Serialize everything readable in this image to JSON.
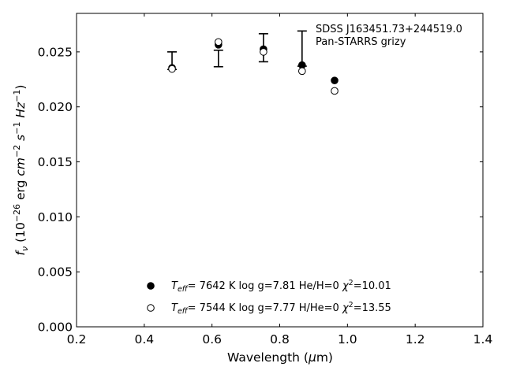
{
  "chart_data": {
    "type": "scatter",
    "xlabel_main": "Wavelength (",
    "xlabel_mu": "μ",
    "xlabel_unit": "m)",
    "ylabel_f": "f",
    "ylabel_sub": "ν",
    "ylabel_open": " (10",
    "ylabel_exp1": "−26",
    "ylabel_erg": " erg ",
    "ylabel_cm": "cm",
    "ylabel_exp2": "−2",
    "ylabel_s": " s",
    "ylabel_exp3": "−1",
    "ylabel_hz": " Hz",
    "ylabel_exp4": "−1",
    "ylabel_close": ")",
    "xlim": [
      0.2,
      1.4
    ],
    "ylim": [
      0.0,
      0.0285
    ],
    "xticks": [
      "0.2",
      "0.4",
      "0.6",
      "0.8",
      "1.0",
      "1.2",
      "1.4"
    ],
    "xtick_values": [
      0.2,
      0.4,
      0.6,
      0.8,
      1.0,
      1.2,
      1.4
    ],
    "yticks": [
      "0.000",
      "0.005",
      "0.010",
      "0.015",
      "0.020",
      "0.025"
    ],
    "ytick_values": [
      0.0,
      0.005,
      0.01,
      0.015,
      0.02,
      0.025
    ],
    "grid": false,
    "annotation": [
      "SDSS J163451.73+244519.0",
      "Pan-STARRS grizy"
    ],
    "observed": {
      "x": [
        0.482,
        0.619,
        0.752,
        0.866
      ],
      "y_low": [
        0.0234,
        0.02365,
        0.0241,
        0.0237
      ],
      "y_high": [
        0.025,
        0.02515,
        0.02665,
        0.0269
      ],
      "y_mid": [
        0.0236,
        0.0255,
        0.025,
        0.0238
      ]
    },
    "series": [
      {
        "marker": "filled",
        "x": [
          0.482,
          0.619,
          0.752,
          0.866,
          0.962
        ],
        "y": [
          0.02355,
          0.02565,
          0.02525,
          0.0238,
          0.0224
        ]
      },
      {
        "marker": "open",
        "x": [
          0.482,
          0.619,
          0.752,
          0.866,
          0.962
        ],
        "y": [
          0.02345,
          0.0259,
          0.025,
          0.02325,
          0.02145
        ]
      }
    ],
    "legend": [
      {
        "marker": "filled",
        "t": "T",
        "tsub": "eff",
        "rest": "=  7642 K  log g=7.81  He/H=0  ",
        "chi": "χ",
        "chiexp": "2",
        "chival": "=10.01"
      },
      {
        "marker": "open",
        "t": "T",
        "tsub": "eff",
        "rest": "=  7544 K  log g=7.77  H/He=0  ",
        "chi": "χ",
        "chiexp": "2",
        "chival": "=13.55"
      }
    ],
    "legend_location": "lower-center"
  }
}
